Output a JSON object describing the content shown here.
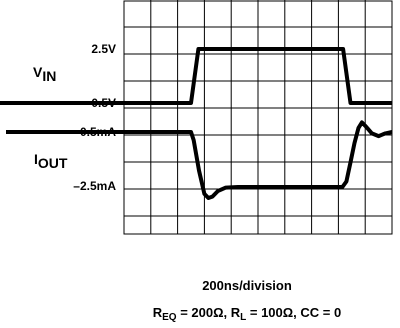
{
  "chart_data": {
    "type": "line",
    "channel_labels": {
      "vin": {
        "main": "V",
        "sub": "IN"
      },
      "iout": {
        "main": "I",
        "sub": "OUT"
      }
    },
    "tick_labels": [
      "2.5V",
      "0.5V",
      "–0.5mA",
      "–2.5mA"
    ],
    "xlabel": "200ns/division",
    "caption": {
      "req_main": "R",
      "req_sub": "EQ",
      "mid": " = 200Ω, R",
      "rl_sub": "L",
      "tail": " = 100Ω, CC = 0"
    },
    "grid": true,
    "time_divisions": 10,
    "xlim_ns": [
      0,
      2000
    ],
    "series": [
      {
        "key": "vin",
        "points": [
          [
            0,
            0.5
          ],
          [
            500,
            0.5
          ],
          [
            555,
            2.5
          ],
          [
            1635,
            2.5
          ],
          [
            1690,
            0.5
          ],
          [
            2000,
            0.5
          ]
        ]
      },
      {
        "key": "iout",
        "points": [
          [
            0,
            -0.5
          ],
          [
            500,
            -0.5
          ],
          [
            520,
            -0.8
          ],
          [
            560,
            -1.9
          ],
          [
            600,
            -2.75
          ],
          [
            630,
            -2.9
          ],
          [
            660,
            -2.85
          ],
          [
            700,
            -2.65
          ],
          [
            760,
            -2.52
          ],
          [
            850,
            -2.5
          ],
          [
            1630,
            -2.5
          ],
          [
            1660,
            -2.3
          ],
          [
            1690,
            -1.6
          ],
          [
            1720,
            -0.9
          ],
          [
            1750,
            -0.35
          ],
          [
            1775,
            -0.15
          ],
          [
            1805,
            -0.3
          ],
          [
            1850,
            -0.55
          ],
          [
            1900,
            -0.65
          ],
          [
            1950,
            -0.55
          ],
          [
            2000,
            -0.5
          ]
        ]
      }
    ]
  }
}
